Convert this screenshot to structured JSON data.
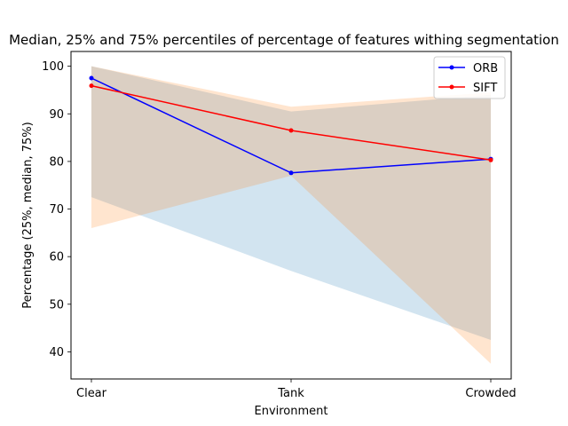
{
  "chart_data": {
    "type": "line",
    "title": "Median, 25% and 75% percentiles of percentage of features withing segmentation",
    "xlabel": "Environment",
    "ylabel": "Percentage (25%, median, 75%)",
    "categories": [
      "Clear",
      "Tank",
      "Crowded"
    ],
    "ylim": [
      34.3,
      103.1
    ],
    "yticks": [
      40,
      50,
      60,
      70,
      80,
      90,
      100
    ],
    "grid": false,
    "legend_position": "top-right",
    "series": [
      {
        "name": "ORB",
        "color": "#0000ff",
        "fill_color": "#1f77b4",
        "median": [
          97.5,
          77.6,
          80.5
        ],
        "p25": [
          72.5,
          57.0,
          42.5
        ],
        "p75": [
          100.0,
          90.5,
          94.0
        ]
      },
      {
        "name": "SIFT",
        "color": "#ff0000",
        "fill_color": "#ff7f0e",
        "median": [
          95.9,
          86.5,
          80.3
        ],
        "p25": [
          66.0,
          77.0,
          37.5
        ],
        "p75": [
          100.0,
          91.5,
          94.5
        ]
      }
    ]
  }
}
